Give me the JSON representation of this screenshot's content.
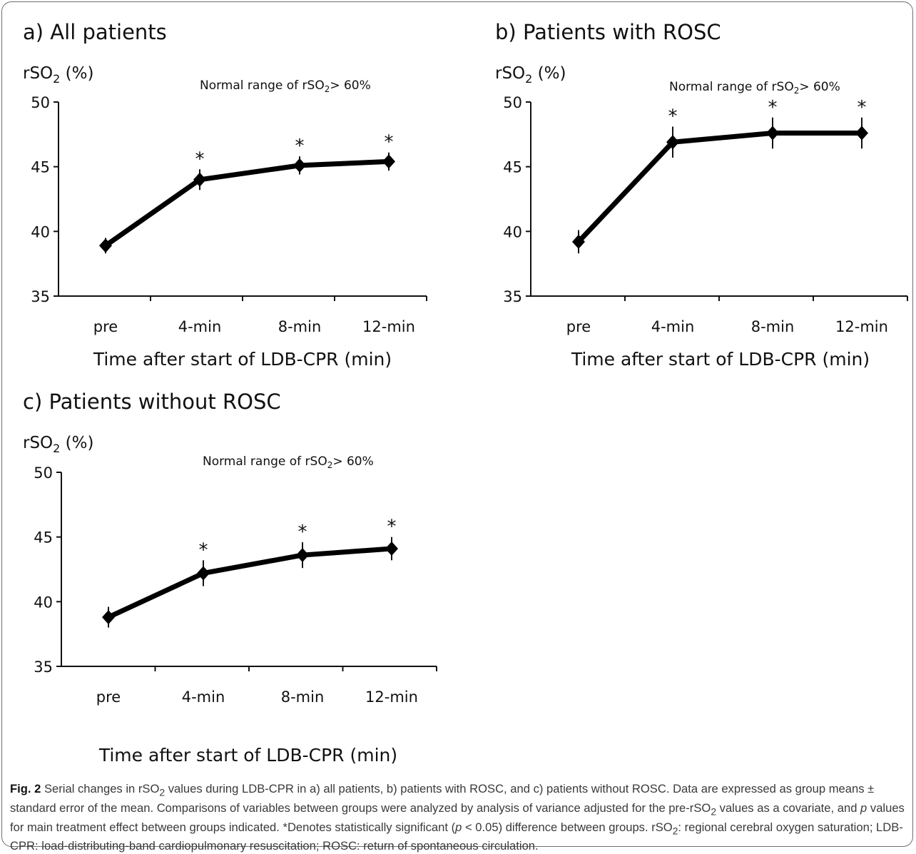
{
  "chart_data": [
    {
      "type": "line",
      "title": "a) All patients",
      "ylabel_main": "rSO",
      "ylabel_sub": "2",
      "ylabel_suffix": " (%)",
      "annotation_main": "Normal range of rSO",
      "annotation_sub": "2",
      "annotation_suffix": "> 60%",
      "xlabel": "Time after start of LDB-CPR (min)",
      "categories": [
        "pre",
        "4-min",
        "8-min",
        "12-min"
      ],
      "values": [
        38.9,
        44.0,
        45.1,
        45.4
      ],
      "errors": [
        0.6,
        0.8,
        0.7,
        0.7
      ],
      "significance": [
        "",
        "*",
        "*",
        "*"
      ],
      "ylim": [
        35,
        50
      ],
      "yticks": [
        "35",
        "40",
        "45",
        "50"
      ]
    },
    {
      "type": "line",
      "title": "b) Patients with ROSC",
      "ylabel_main": "rSO",
      "ylabel_sub": "2",
      "ylabel_suffix": " (%)",
      "annotation_main": "Normal range of rSO",
      "annotation_sub": "2",
      "annotation_suffix": "> 60%",
      "xlabel": "Time after start of LDB-CPR (min)",
      "categories": [
        "pre",
        "4-min",
        "8-min",
        "12-min"
      ],
      "values": [
        39.2,
        46.9,
        47.6,
        47.6
      ],
      "errors": [
        0.9,
        1.2,
        1.2,
        1.2
      ],
      "significance": [
        "",
        "*",
        "*",
        "*"
      ],
      "ylim": [
        35,
        50
      ],
      "yticks": [
        "35",
        "40",
        "45",
        "50"
      ]
    },
    {
      "type": "line",
      "title": "c) Patients without ROSC",
      "ylabel_main": "rSO",
      "ylabel_sub": "2",
      "ylabel_suffix": " (%)",
      "annotation_main": "Normal range of rSO",
      "annotation_sub": "2",
      "annotation_suffix": "> 60%",
      "xlabel": "Time after start of LDB-CPR (min)",
      "categories": [
        "pre",
        "4-min",
        "8-min",
        "12-min"
      ],
      "values": [
        38.8,
        42.2,
        43.6,
        44.1
      ],
      "errors": [
        0.8,
        1.0,
        1.0,
        0.9
      ],
      "significance": [
        "",
        "*",
        "*",
        "*"
      ],
      "ylim": [
        35,
        50
      ],
      "yticks": [
        "35",
        "40",
        "45",
        "50"
      ]
    }
  ],
  "caption": {
    "fig_label": "Fig. 2",
    "text_1": " Serial changes in rSO",
    "sub_1": "2",
    "text_2": " values during LDB-CPR in a) all patients, b) patients with ROSC, and c) patients without ROSC. Data are expressed as group means ± standard error of the mean. Comparisons of variables between groups were analyzed by analysis of variance adjusted for the pre-rSO",
    "sub_2": "2",
    "text_3": " values as a covariate, and ",
    "p_1": "p",
    "text_4": " values for main treatment effect between groups indicated. *Denotes statistically significant (",
    "p_2": "p",
    "text_5": " < 0.05) difference between groups. rSO",
    "sub_3": "2",
    "text_6": ": regional cerebral oxygen saturation; LDB-CPR: load-distributing-band cardiopulmonary resuscitation; ROSC: return of spontaneous circulation."
  }
}
